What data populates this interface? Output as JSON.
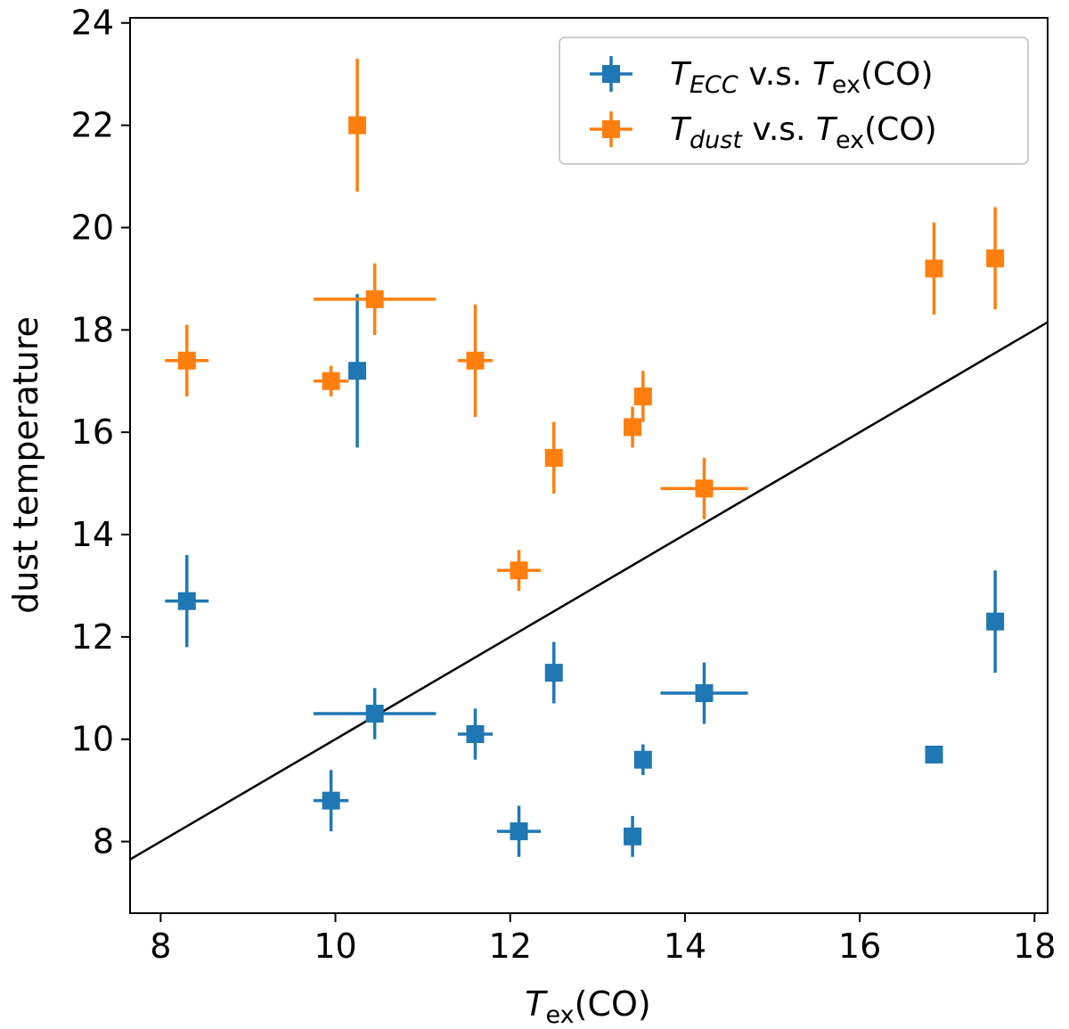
{
  "chart_data": {
    "type": "scatter",
    "title": "",
    "xlabel": {
      "main": "T",
      "sub": "ex",
      "rest": "(CO)"
    },
    "ylabel": "dust temperature",
    "xlim": [
      7.65,
      18.15
    ],
    "ylim": [
      6.6,
      24.1
    ],
    "xticks": [
      8,
      10,
      12,
      14,
      16,
      18
    ],
    "yticks": [
      8,
      10,
      12,
      14,
      16,
      18,
      20,
      22,
      24
    ],
    "grid": false,
    "legend_position": "top-right",
    "reference_line": {
      "label": "y = x",
      "color": "#000000"
    },
    "series": [
      {
        "name": "T_ECC v.s. T_ex(CO)",
        "legend": {
          "main": "T",
          "sub": "ECC",
          "rest": " v.s. ",
          "main2": "T",
          "sub2": "ex",
          "rest2": "(CO)"
        },
        "color": "#1f77b4",
        "points": [
          {
            "x": 8.3,
            "y": 12.7,
            "xerr": 0.25,
            "yerr": 0.9
          },
          {
            "x": 10.25,
            "y": 17.2,
            "xerr": 0.0,
            "yerr": 1.5
          },
          {
            "x": 10.45,
            "y": 10.5,
            "xerr": 0.7,
            "yerr": 0.5
          },
          {
            "x": 9.95,
            "y": 8.8,
            "xerr": 0.2,
            "yerr": 0.6
          },
          {
            "x": 11.6,
            "y": 10.1,
            "xerr": 0.2,
            "yerr": 0.5
          },
          {
            "x": 12.1,
            "y": 8.2,
            "xerr": 0.25,
            "yerr": 0.5
          },
          {
            "x": 12.5,
            "y": 11.3,
            "xerr": 0.0,
            "yerr": 0.6
          },
          {
            "x": 13.4,
            "y": 8.1,
            "xerr": 0.1,
            "yerr": 0.4
          },
          {
            "x": 13.52,
            "y": 9.6,
            "xerr": 0.1,
            "yerr": 0.3
          },
          {
            "x": 14.22,
            "y": 10.9,
            "xerr": 0.5,
            "yerr": 0.6
          },
          {
            "x": 16.85,
            "y": 9.7,
            "xerr": 0.0,
            "yerr": 0.0
          },
          {
            "x": 17.55,
            "y": 12.3,
            "xerr": 0.0,
            "yerr": 1.0
          }
        ]
      },
      {
        "name": "T_dust v.s. T_ex(CO)",
        "legend": {
          "main": "T",
          "sub": "dust",
          "rest": " v.s. ",
          "main2": "T",
          "sub2": "ex",
          "rest2": "(CO)"
        },
        "color": "#ff7f0e",
        "points": [
          {
            "x": 8.3,
            "y": 17.4,
            "xerr": 0.25,
            "yerr": 0.7
          },
          {
            "x": 10.25,
            "y": 22.0,
            "xerr": 0.0,
            "yerr": 1.3
          },
          {
            "x": 10.45,
            "y": 18.6,
            "xerr": 0.7,
            "yerr": 0.7
          },
          {
            "x": 9.95,
            "y": 17.0,
            "xerr": 0.2,
            "yerr": 0.3
          },
          {
            "x": 11.6,
            "y": 17.4,
            "xerr": 0.2,
            "yerr": 1.1
          },
          {
            "x": 12.1,
            "y": 13.3,
            "xerr": 0.25,
            "yerr": 0.4
          },
          {
            "x": 12.5,
            "y": 15.5,
            "xerr": 0.0,
            "yerr": 0.7
          },
          {
            "x": 13.4,
            "y": 16.1,
            "xerr": 0.1,
            "yerr": 0.4
          },
          {
            "x": 13.52,
            "y": 16.7,
            "xerr": 0.1,
            "yerr": 0.5
          },
          {
            "x": 14.22,
            "y": 14.9,
            "xerr": 0.5,
            "yerr": 0.6
          },
          {
            "x": 16.85,
            "y": 19.2,
            "xerr": 0.0,
            "yerr": 0.9
          },
          {
            "x": 17.55,
            "y": 19.4,
            "xerr": 0.0,
            "yerr": 1.0
          }
        ]
      }
    ]
  }
}
